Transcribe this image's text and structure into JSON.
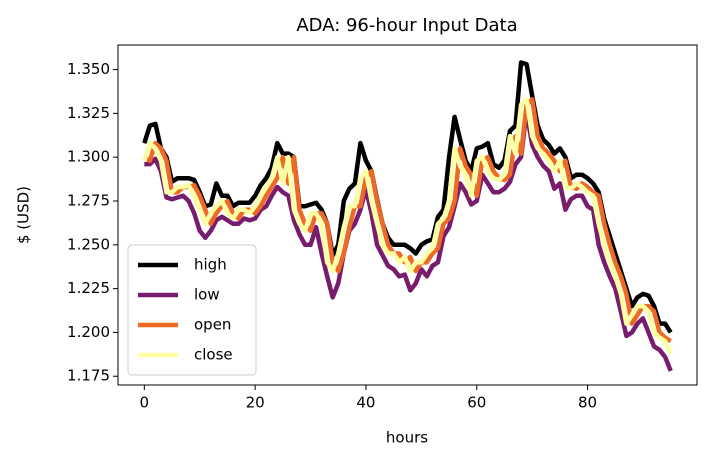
{
  "chart_data": {
    "type": "line",
    "title": "ADA: 96-hour Input Data",
    "x_label": "hours",
    "y_label": "$ (USD)",
    "x": [
      0,
      1,
      2,
      3,
      4,
      5,
      6,
      7,
      8,
      9,
      10,
      11,
      12,
      13,
      14,
      15,
      16,
      17,
      18,
      19,
      20,
      21,
      22,
      23,
      24,
      25,
      26,
      27,
      28,
      29,
      30,
      31,
      32,
      33,
      34,
      35,
      36,
      37,
      38,
      39,
      40,
      41,
      42,
      43,
      44,
      45,
      46,
      47,
      48,
      49,
      50,
      51,
      52,
      53,
      54,
      55,
      56,
      57,
      58,
      59,
      60,
      61,
      62,
      63,
      64,
      65,
      66,
      67,
      68,
      69,
      70,
      71,
      72,
      73,
      74,
      75,
      76,
      77,
      78,
      79,
      80,
      81,
      82,
      83,
      84,
      85,
      86,
      87,
      88,
      89,
      90,
      91,
      92,
      93,
      94,
      95
    ],
    "series": [
      {
        "name": "high",
        "color": "#000000",
        "values": [
          1.308,
          1.318,
          1.319,
          1.305,
          1.3,
          1.286,
          1.288,
          1.288,
          1.288,
          1.287,
          1.28,
          1.272,
          1.273,
          1.285,
          1.278,
          1.278,
          1.272,
          1.274,
          1.274,
          1.274,
          1.278,
          1.284,
          1.288,
          1.294,
          1.308,
          1.302,
          1.302,
          1.3,
          1.272,
          1.272,
          1.273,
          1.274,
          1.27,
          1.262,
          1.244,
          1.25,
          1.275,
          1.282,
          1.285,
          1.308,
          1.298,
          1.292,
          1.276,
          1.262,
          1.254,
          1.25,
          1.25,
          1.25,
          1.248,
          1.245,
          1.25,
          1.252,
          1.253,
          1.266,
          1.27,
          1.3,
          1.323,
          1.31,
          1.298,
          1.292,
          1.305,
          1.306,
          1.308,
          1.296,
          1.294,
          1.298,
          1.315,
          1.318,
          1.354,
          1.353,
          1.335,
          1.318,
          1.31,
          1.307,
          1.302,
          1.305,
          1.3,
          1.288,
          1.29,
          1.29,
          1.288,
          1.285,
          1.28,
          1.265,
          1.255,
          1.245,
          1.235,
          1.225,
          1.215,
          1.22,
          1.222,
          1.221,
          1.215,
          1.205,
          1.205,
          1.2
        ]
      },
      {
        "name": "low",
        "color": "#781c6d",
        "values": [
          1.296,
          1.296,
          1.299,
          1.292,
          1.277,
          1.276,
          1.277,
          1.278,
          1.275,
          1.268,
          1.258,
          1.254,
          1.258,
          1.264,
          1.266,
          1.264,
          1.262,
          1.262,
          1.265,
          1.264,
          1.265,
          1.27,
          1.272,
          1.278,
          1.283,
          1.28,
          1.278,
          1.264,
          1.256,
          1.25,
          1.25,
          1.26,
          1.245,
          1.232,
          1.22,
          1.228,
          1.245,
          1.258,
          1.262,
          1.27,
          1.282,
          1.268,
          1.25,
          1.244,
          1.238,
          1.236,
          1.232,
          1.233,
          1.224,
          1.228,
          1.236,
          1.232,
          1.238,
          1.24,
          1.255,
          1.26,
          1.272,
          1.285,
          1.28,
          1.273,
          1.275,
          1.29,
          1.285,
          1.28,
          1.28,
          1.282,
          1.286,
          1.296,
          1.3,
          1.326,
          1.307,
          1.3,
          1.295,
          1.292,
          1.282,
          1.285,
          1.27,
          1.276,
          1.278,
          1.278,
          1.272,
          1.27,
          1.25,
          1.24,
          1.232,
          1.225,
          1.212,
          1.198,
          1.2,
          1.205,
          1.208,
          1.2,
          1.192,
          1.19,
          1.186,
          1.178
        ]
      },
      {
        "name": "open",
        "color": "#ed6925",
        "values": [
          1.3,
          1.298,
          1.308,
          1.305,
          1.298,
          1.28,
          1.28,
          1.283,
          1.283,
          1.284,
          1.278,
          1.27,
          1.262,
          1.268,
          1.272,
          1.275,
          1.268,
          1.265,
          1.27,
          1.27,
          1.268,
          1.272,
          1.278,
          1.283,
          1.288,
          1.3,
          1.285,
          1.3,
          1.27,
          1.262,
          1.258,
          1.268,
          1.268,
          1.262,
          1.24,
          1.235,
          1.245,
          1.26,
          1.272,
          1.272,
          1.288,
          1.292,
          1.275,
          1.262,
          1.25,
          1.245,
          1.245,
          1.24,
          1.243,
          1.235,
          1.24,
          1.24,
          1.245,
          1.248,
          1.262,
          1.265,
          1.275,
          1.305,
          1.295,
          1.29,
          1.278,
          1.298,
          1.3,
          1.292,
          1.288,
          1.287,
          1.29,
          1.312,
          1.302,
          1.33,
          1.333,
          1.312,
          1.305,
          1.302,
          1.298,
          1.292,
          1.298,
          1.283,
          1.282,
          1.285,
          1.283,
          1.28,
          1.278,
          1.262,
          1.25,
          1.24,
          1.232,
          1.222,
          1.205,
          1.21,
          1.215,
          1.215,
          1.212,
          1.2,
          1.197,
          1.195
        ]
      },
      {
        "name": "close",
        "color": "#fcffa4",
        "values": [
          1.298,
          1.308,
          1.305,
          1.298,
          1.28,
          1.28,
          1.283,
          1.283,
          1.284,
          1.278,
          1.27,
          1.262,
          1.268,
          1.272,
          1.275,
          1.268,
          1.265,
          1.27,
          1.27,
          1.268,
          1.272,
          1.278,
          1.283,
          1.288,
          1.3,
          1.285,
          1.3,
          1.27,
          1.262,
          1.258,
          1.268,
          1.268,
          1.262,
          1.24,
          1.235,
          1.245,
          1.26,
          1.272,
          1.272,
          1.288,
          1.292,
          1.275,
          1.262,
          1.25,
          1.245,
          1.245,
          1.24,
          1.243,
          1.235,
          1.24,
          1.24,
          1.245,
          1.248,
          1.262,
          1.265,
          1.275,
          1.305,
          1.295,
          1.29,
          1.278,
          1.298,
          1.3,
          1.292,
          1.288,
          1.287,
          1.29,
          1.312,
          1.302,
          1.33,
          1.333,
          1.312,
          1.305,
          1.302,
          1.298,
          1.292,
          1.298,
          1.283,
          1.282,
          1.285,
          1.283,
          1.28,
          1.278,
          1.262,
          1.25,
          1.24,
          1.232,
          1.222,
          1.205,
          1.21,
          1.215,
          1.215,
          1.212,
          1.2,
          1.197,
          1.195,
          1.188
        ]
      }
    ],
    "xlim": [
      -4.75,
      99.75
    ],
    "xticks": [
      0,
      20,
      40,
      60,
      80
    ],
    "ylim": [
      1.17,
      1.364
    ],
    "yticks": [
      1.175,
      {
        "value": 1.2,
        "label": "1.200"
      },
      1.225,
      {
        "value": 1.25,
        "label": "1.250"
      },
      1.275,
      {
        "value": 1.3,
        "label": "1.300"
      },
      1.325,
      {
        "value": 1.35,
        "label": "1.350"
      }
    ],
    "legend": "lower left"
  }
}
